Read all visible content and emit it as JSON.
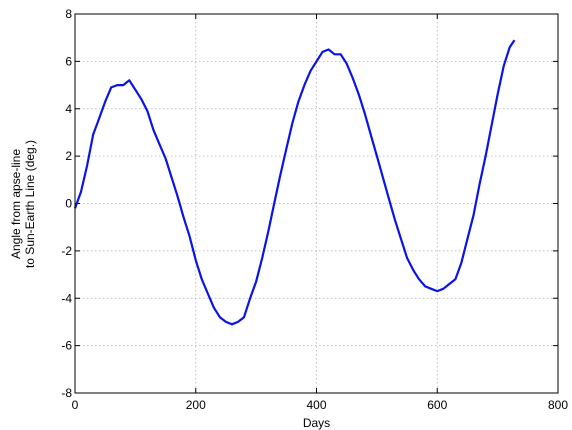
{
  "chart_data": {
    "type": "line",
    "title": "",
    "xlabel": "Days",
    "ylabel_lines": [
      "Angle from apse-line",
      "to Sun-Earth Line (deg.)"
    ],
    "xlim": [
      0,
      800
    ],
    "ylim": [
      -8,
      8
    ],
    "xticks": [
      0,
      200,
      400,
      600,
      800
    ],
    "yticks": [
      -8,
      -6,
      -4,
      -2,
      0,
      2,
      4,
      6,
      8
    ],
    "xtick_labels": [
      "0",
      "200",
      "400",
      "600",
      "800"
    ],
    "ytick_labels": [
      "-8",
      "-6",
      "-4",
      "-2",
      "0",
      "2",
      "4",
      "6",
      "8"
    ],
    "grid": true,
    "line_color": "#0a14e6",
    "series": [
      {
        "x": [
          0,
          10,
          20,
          30,
          40,
          50,
          60,
          70,
          80,
          90,
          100,
          110,
          120,
          130,
          140,
          150,
          160,
          170,
          180,
          190,
          200,
          210,
          220,
          230,
          240,
          250,
          260,
          270,
          280,
          290,
          300,
          310,
          320,
          330,
          340,
          350,
          360,
          370,
          380,
          390,
          400,
          410,
          420,
          430,
          440,
          450,
          460,
          470,
          480,
          490,
          500,
          510,
          520,
          530,
          540,
          550,
          560,
          570,
          580,
          590,
          600,
          610,
          620,
          630,
          640,
          650,
          660,
          670,
          680,
          690,
          700,
          710,
          720,
          728
        ],
        "y": [
          -0.2,
          0.5,
          1.6,
          2.9,
          3.6,
          4.3,
          4.9,
          5.0,
          5.0,
          5.2,
          4.8,
          4.4,
          3.9,
          3.1,
          2.5,
          1.9,
          1.1,
          0.3,
          -0.6,
          -1.4,
          -2.4,
          -3.2,
          -3.8,
          -4.4,
          -4.8,
          -5.0,
          -5.1,
          -5.0,
          -4.8,
          -4.0,
          -3.3,
          -2.3,
          -1.2,
          0.0,
          1.2,
          2.3,
          3.4,
          4.3,
          5.0,
          5.6,
          6.0,
          6.4,
          6.5,
          6.3,
          6.3,
          5.9,
          5.3,
          4.6,
          3.8,
          2.9,
          2.0,
          1.1,
          0.2,
          -0.7,
          -1.5,
          -2.3,
          -2.8,
          -3.2,
          -3.5,
          -3.6,
          -3.7,
          -3.6,
          -3.4,
          -3.2,
          -2.5,
          -1.5,
          -0.5,
          0.8,
          2.0,
          3.3,
          4.6,
          5.8,
          6.6,
          6.9
        ]
      }
    ]
  }
}
